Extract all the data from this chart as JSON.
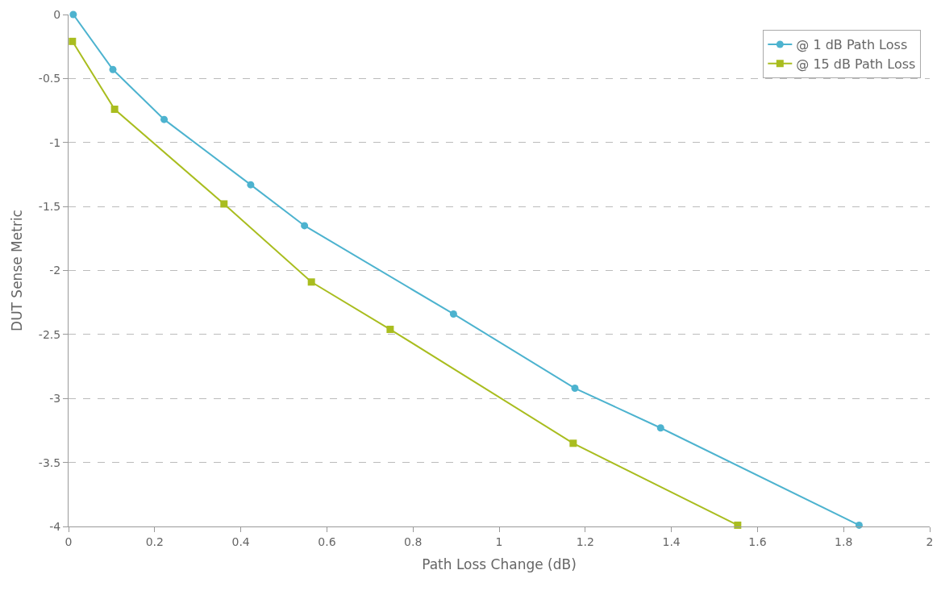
{
  "chart_data": {
    "type": "line",
    "xlabel": "Path Loss Change (dB)",
    "ylabel": "DUT Sense Metric",
    "xlim": [
      0,
      2
    ],
    "xticks": [
      0,
      0.2,
      0.4,
      0.6,
      0.8,
      1,
      1.2,
      1.4,
      1.6,
      1.8,
      2
    ],
    "ylim": [
      -4,
      0
    ],
    "yticks": [
      0,
      -0.5,
      -1,
      -1.5,
      -2,
      -2.5,
      -3,
      -3.5,
      -4
    ],
    "grid": "y",
    "legend": "top right",
    "series": [
      {
        "name": "@ 1 dB Path Loss",
        "color": "#4db3cf",
        "marker": "circle",
        "x": [
          0.011,
          0.103,
          0.222,
          0.423,
          0.548,
          0.894,
          1.176,
          1.375,
          1.836
        ],
        "values": [
          0,
          -0.43,
          -0.82,
          -1.33,
          -1.65,
          -2.34,
          -2.92,
          -3.23,
          -3.99
        ]
      },
      {
        "name": "@ 15 dB Path Loss",
        "color": "#a9bd1f",
        "marker": "square",
        "x": [
          0.009,
          0.107,
          0.361,
          0.564,
          0.747,
          1.172,
          1.554
        ],
        "values": [
          -0.21,
          -0.74,
          -1.48,
          -2.09,
          -2.46,
          -3.35,
          -3.99
        ]
      }
    ]
  }
}
